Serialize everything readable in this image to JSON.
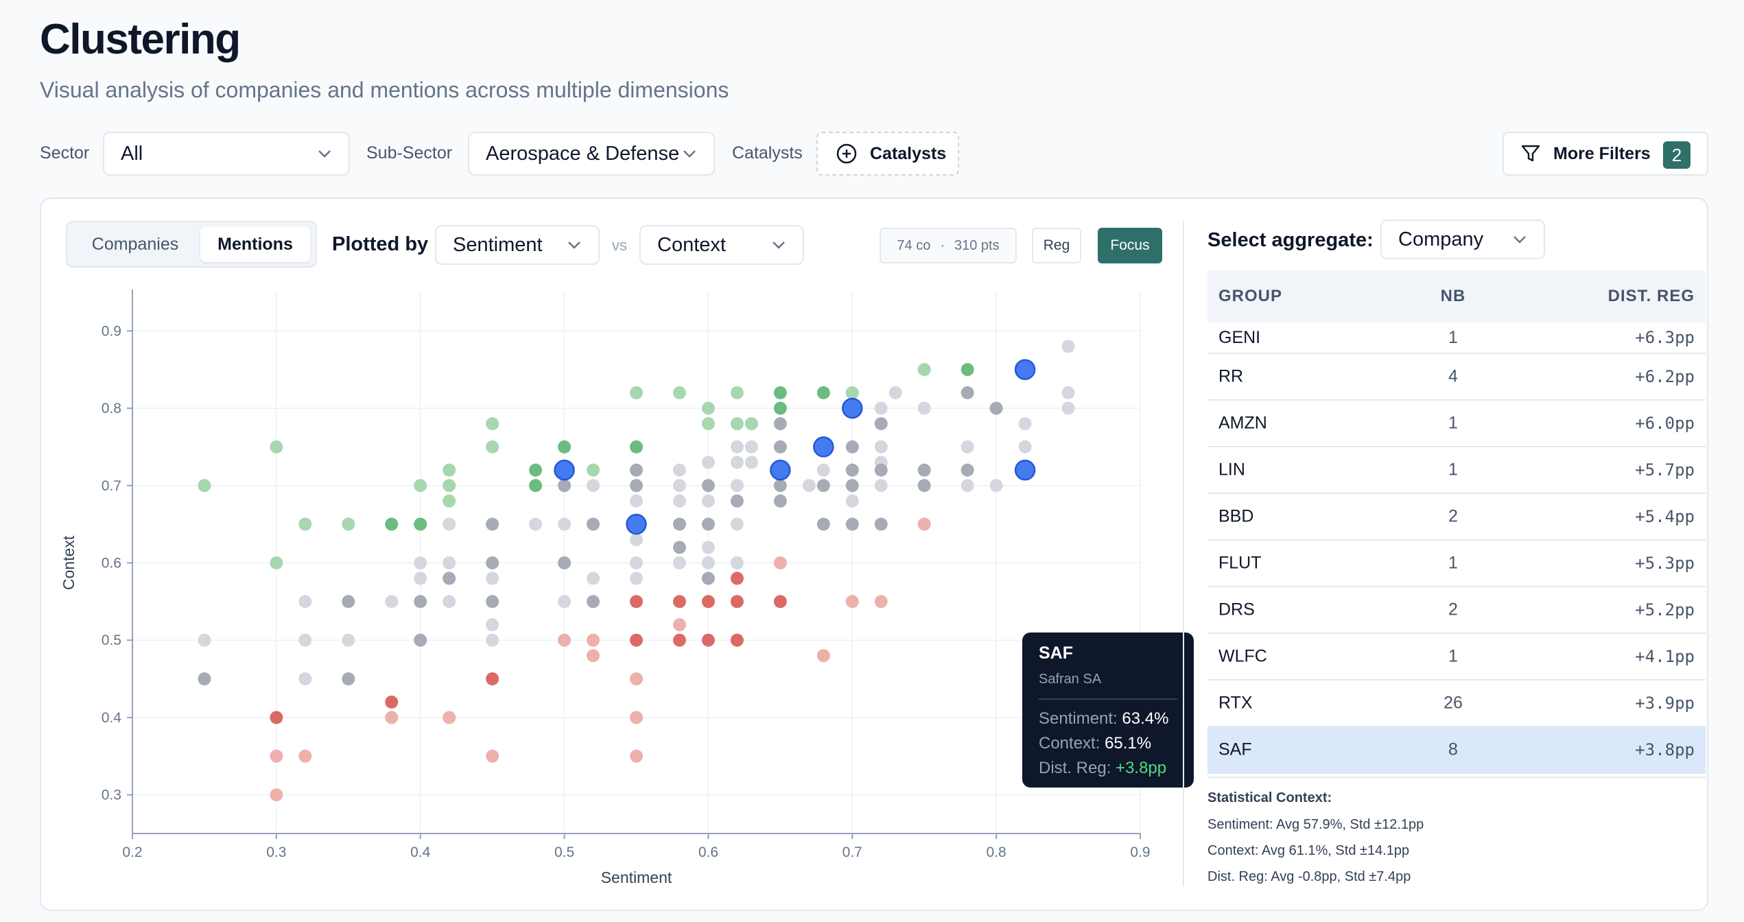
{
  "page": {
    "title": "Clustering",
    "subtitle": "Visual analysis of companies and mentions across multiple dimensions"
  },
  "filters": {
    "sector_label": "Sector",
    "sector_value": "All",
    "subsector_label": "Sub-Sector",
    "subsector_value": "Aerospace & Defense",
    "catalysts_label": "Catalysts",
    "catalysts_button": "Catalysts",
    "more_filters": "More Filters",
    "more_filters_count": "2"
  },
  "toolbar": {
    "tab_companies": "Companies",
    "tab_mentions": "Mentions",
    "active_tab": "Mentions",
    "plotted_by": "Plotted by",
    "x_select": "Sentiment",
    "vs": "vs",
    "y_select": "Context",
    "companies_count": "74 co",
    "points_count": "310 pts",
    "reg_button": "Reg",
    "focus_button": "Focus"
  },
  "tooltip": {
    "code": "SAF",
    "name": "Safran SA",
    "sentiment_label": "Sentiment:",
    "sentiment_value": "63.4%",
    "context_label": "Context:",
    "context_value": "65.1%",
    "dist_label": "Dist. Reg:",
    "dist_value": "+3.8pp"
  },
  "aggregate": {
    "label": "Select aggregate:",
    "value": "Company",
    "columns": [
      "GROUP",
      "NB",
      "DIST. REG"
    ],
    "rows": [
      {
        "group": "GENI",
        "nb": "1",
        "dist": "+6.3pp"
      },
      {
        "group": "RR",
        "nb": "4",
        "dist": "+6.2pp"
      },
      {
        "group": "AMZN",
        "nb": "1",
        "dist": "+6.0pp"
      },
      {
        "group": "LIN",
        "nb": "1",
        "dist": "+5.7pp"
      },
      {
        "group": "BBD",
        "nb": "2",
        "dist": "+5.4pp"
      },
      {
        "group": "FLUT",
        "nb": "1",
        "dist": "+5.3pp"
      },
      {
        "group": "DRS",
        "nb": "2",
        "dist": "+5.2pp"
      },
      {
        "group": "WLFC",
        "nb": "1",
        "dist": "+4.1pp"
      },
      {
        "group": "RTX",
        "nb": "26",
        "dist": "+3.9pp"
      },
      {
        "group": "SAF",
        "nb": "8",
        "dist": "+3.8pp"
      }
    ],
    "selected": "SAF"
  },
  "stats": {
    "title": "Statistical Context:",
    "sentiment": "Sentiment: Avg 57.9%, Std ±12.1pp",
    "context": "Context: Avg 61.1%, Std ±14.1pp",
    "dist": "Dist. Reg: Avg -0.8pp, Std ±7.4pp"
  },
  "colors": {
    "positive": "#a7d7ae",
    "positive_strong": "#6dbb7e",
    "neutral": "#d4d7dd",
    "neutral_strong": "#a6abb5",
    "negative": "#eeb0ab",
    "negative_strong": "#dc6a64",
    "highlight": "#3b74f0",
    "accent": "#2f6f6a"
  },
  "chart_data": {
    "type": "scatter",
    "xlabel": "Sentiment",
    "ylabel": "Context",
    "xlim": [
      0.2,
      0.9
    ],
    "ylim": [
      0.25,
      0.95
    ],
    "x_ticks": [
      "0.2",
      "0.3",
      "0.4",
      "0.5",
      "0.6",
      "0.7",
      "0.8",
      "0.9"
    ],
    "y_ticks": [
      "0.3",
      "0.4",
      "0.5",
      "0.6",
      "0.7",
      "0.8",
      "0.9"
    ],
    "grid": true,
    "categories": [
      "pos",
      "pos-strong",
      "neu",
      "neu-strong",
      "neg",
      "neg-strong",
      "highlight"
    ],
    "points": [
      {
        "x": 0.25,
        "y": 0.7,
        "c": "pos"
      },
      {
        "x": 0.3,
        "y": 0.75,
        "c": "pos"
      },
      {
        "x": 0.3,
        "y": 0.6,
        "c": "pos"
      },
      {
        "x": 0.32,
        "y": 0.65,
        "c": "pos"
      },
      {
        "x": 0.35,
        "y": 0.65,
        "c": "pos"
      },
      {
        "x": 0.38,
        "y": 0.65,
        "c": "pos-strong"
      },
      {
        "x": 0.4,
        "y": 0.65,
        "c": "pos-strong"
      },
      {
        "x": 0.4,
        "y": 0.7,
        "c": "pos"
      },
      {
        "x": 0.42,
        "y": 0.72,
        "c": "pos"
      },
      {
        "x": 0.42,
        "y": 0.7,
        "c": "pos"
      },
      {
        "x": 0.42,
        "y": 0.68,
        "c": "pos"
      },
      {
        "x": 0.45,
        "y": 0.78,
        "c": "pos"
      },
      {
        "x": 0.45,
        "y": 0.75,
        "c": "pos"
      },
      {
        "x": 0.48,
        "y": 0.72,
        "c": "pos-strong"
      },
      {
        "x": 0.48,
        "y": 0.7,
        "c": "pos-strong"
      },
      {
        "x": 0.5,
        "y": 0.75,
        "c": "pos-strong"
      },
      {
        "x": 0.52,
        "y": 0.72,
        "c": "pos"
      },
      {
        "x": 0.55,
        "y": 0.82,
        "c": "pos"
      },
      {
        "x": 0.55,
        "y": 0.75,
        "c": "pos-strong"
      },
      {
        "x": 0.58,
        "y": 0.82,
        "c": "pos"
      },
      {
        "x": 0.6,
        "y": 0.8,
        "c": "pos"
      },
      {
        "x": 0.6,
        "y": 0.78,
        "c": "pos"
      },
      {
        "x": 0.62,
        "y": 0.82,
        "c": "pos"
      },
      {
        "x": 0.62,
        "y": 0.78,
        "c": "pos"
      },
      {
        "x": 0.63,
        "y": 0.78,
        "c": "pos"
      },
      {
        "x": 0.65,
        "y": 0.82,
        "c": "pos-strong"
      },
      {
        "x": 0.65,
        "y": 0.8,
        "c": "pos-strong"
      },
      {
        "x": 0.68,
        "y": 0.82,
        "c": "pos-strong"
      },
      {
        "x": 0.7,
        "y": 0.82,
        "c": "pos"
      },
      {
        "x": 0.75,
        "y": 0.85,
        "c": "pos"
      },
      {
        "x": 0.78,
        "y": 0.85,
        "c": "pos-strong"
      },
      {
        "x": 0.25,
        "y": 0.5,
        "c": "neu"
      },
      {
        "x": 0.25,
        "y": 0.45,
        "c": "neu-strong"
      },
      {
        "x": 0.32,
        "y": 0.55,
        "c": "neu"
      },
      {
        "x": 0.32,
        "y": 0.5,
        "c": "neu"
      },
      {
        "x": 0.32,
        "y": 0.45,
        "c": "neu"
      },
      {
        "x": 0.35,
        "y": 0.55,
        "c": "neu-strong"
      },
      {
        "x": 0.35,
        "y": 0.5,
        "c": "neu"
      },
      {
        "x": 0.35,
        "y": 0.45,
        "c": "neu-strong"
      },
      {
        "x": 0.38,
        "y": 0.55,
        "c": "neu"
      },
      {
        "x": 0.4,
        "y": 0.6,
        "c": "neu"
      },
      {
        "x": 0.4,
        "y": 0.58,
        "c": "neu"
      },
      {
        "x": 0.4,
        "y": 0.55,
        "c": "neu-strong"
      },
      {
        "x": 0.4,
        "y": 0.5,
        "c": "neu-strong"
      },
      {
        "x": 0.42,
        "y": 0.65,
        "c": "neu"
      },
      {
        "x": 0.42,
        "y": 0.6,
        "c": "neu"
      },
      {
        "x": 0.42,
        "y": 0.58,
        "c": "neu-strong"
      },
      {
        "x": 0.42,
        "y": 0.55,
        "c": "neu"
      },
      {
        "x": 0.45,
        "y": 0.65,
        "c": "neu-strong"
      },
      {
        "x": 0.45,
        "y": 0.6,
        "c": "neu-strong"
      },
      {
        "x": 0.45,
        "y": 0.58,
        "c": "neu"
      },
      {
        "x": 0.45,
        "y": 0.55,
        "c": "neu-strong"
      },
      {
        "x": 0.45,
        "y": 0.52,
        "c": "neu"
      },
      {
        "x": 0.45,
        "y": 0.5,
        "c": "neu"
      },
      {
        "x": 0.48,
        "y": 0.65,
        "c": "neu"
      },
      {
        "x": 0.5,
        "y": 0.7,
        "c": "neu-strong"
      },
      {
        "x": 0.5,
        "y": 0.65,
        "c": "neu"
      },
      {
        "x": 0.5,
        "y": 0.6,
        "c": "neu-strong"
      },
      {
        "x": 0.5,
        "y": 0.55,
        "c": "neu"
      },
      {
        "x": 0.52,
        "y": 0.7,
        "c": "neu"
      },
      {
        "x": 0.52,
        "y": 0.65,
        "c": "neu-strong"
      },
      {
        "x": 0.52,
        "y": 0.58,
        "c": "neu"
      },
      {
        "x": 0.52,
        "y": 0.55,
        "c": "neu-strong"
      },
      {
        "x": 0.55,
        "y": 0.72,
        "c": "neu-strong"
      },
      {
        "x": 0.55,
        "y": 0.7,
        "c": "neu-strong"
      },
      {
        "x": 0.55,
        "y": 0.68,
        "c": "neu"
      },
      {
        "x": 0.55,
        "y": 0.63,
        "c": "neu"
      },
      {
        "x": 0.55,
        "y": 0.6,
        "c": "neu"
      },
      {
        "x": 0.55,
        "y": 0.58,
        "c": "neu"
      },
      {
        "x": 0.58,
        "y": 0.72,
        "c": "neu"
      },
      {
        "x": 0.58,
        "y": 0.7,
        "c": "neu"
      },
      {
        "x": 0.58,
        "y": 0.68,
        "c": "neu"
      },
      {
        "x": 0.58,
        "y": 0.65,
        "c": "neu-strong"
      },
      {
        "x": 0.58,
        "y": 0.62,
        "c": "neu-strong"
      },
      {
        "x": 0.58,
        "y": 0.6,
        "c": "neu"
      },
      {
        "x": 0.6,
        "y": 0.73,
        "c": "neu"
      },
      {
        "x": 0.6,
        "y": 0.7,
        "c": "neu-strong"
      },
      {
        "x": 0.6,
        "y": 0.68,
        "c": "neu"
      },
      {
        "x": 0.6,
        "y": 0.65,
        "c": "neu-strong"
      },
      {
        "x": 0.6,
        "y": 0.62,
        "c": "neu"
      },
      {
        "x": 0.6,
        "y": 0.6,
        "c": "neu"
      },
      {
        "x": 0.6,
        "y": 0.58,
        "c": "neu-strong"
      },
      {
        "x": 0.62,
        "y": 0.75,
        "c": "neu"
      },
      {
        "x": 0.62,
        "y": 0.73,
        "c": "neu"
      },
      {
        "x": 0.62,
        "y": 0.7,
        "c": "neu"
      },
      {
        "x": 0.62,
        "y": 0.68,
        "c": "neu-strong"
      },
      {
        "x": 0.62,
        "y": 0.65,
        "c": "neu"
      },
      {
        "x": 0.62,
        "y": 0.6,
        "c": "neu"
      },
      {
        "x": 0.63,
        "y": 0.75,
        "c": "neu"
      },
      {
        "x": 0.63,
        "y": 0.73,
        "c": "neu"
      },
      {
        "x": 0.65,
        "y": 0.78,
        "c": "neu-strong"
      },
      {
        "x": 0.65,
        "y": 0.75,
        "c": "neu-strong"
      },
      {
        "x": 0.65,
        "y": 0.7,
        "c": "neu-strong"
      },
      {
        "x": 0.65,
        "y": 0.68,
        "c": "neu-strong"
      },
      {
        "x": 0.67,
        "y": 0.7,
        "c": "neu"
      },
      {
        "x": 0.68,
        "y": 0.72,
        "c": "neu"
      },
      {
        "x": 0.68,
        "y": 0.7,
        "c": "neu-strong"
      },
      {
        "x": 0.68,
        "y": 0.65,
        "c": "neu-strong"
      },
      {
        "x": 0.7,
        "y": 0.75,
        "c": "neu-strong"
      },
      {
        "x": 0.7,
        "y": 0.72,
        "c": "neu-strong"
      },
      {
        "x": 0.7,
        "y": 0.7,
        "c": "neu-strong"
      },
      {
        "x": 0.7,
        "y": 0.68,
        "c": "neu"
      },
      {
        "x": 0.7,
        "y": 0.65,
        "c": "neu-strong"
      },
      {
        "x": 0.72,
        "y": 0.8,
        "c": "neu"
      },
      {
        "x": 0.72,
        "y": 0.78,
        "c": "neu-strong"
      },
      {
        "x": 0.72,
        "y": 0.75,
        "c": "neu"
      },
      {
        "x": 0.72,
        "y": 0.73,
        "c": "neu"
      },
      {
        "x": 0.72,
        "y": 0.72,
        "c": "neu-strong"
      },
      {
        "x": 0.72,
        "y": 0.7,
        "c": "neu"
      },
      {
        "x": 0.72,
        "y": 0.65,
        "c": "neu-strong"
      },
      {
        "x": 0.73,
        "y": 0.82,
        "c": "neu"
      },
      {
        "x": 0.75,
        "y": 0.8,
        "c": "neu"
      },
      {
        "x": 0.75,
        "y": 0.72,
        "c": "neu-strong"
      },
      {
        "x": 0.75,
        "y": 0.7,
        "c": "neu-strong"
      },
      {
        "x": 0.78,
        "y": 0.82,
        "c": "neu-strong"
      },
      {
        "x": 0.78,
        "y": 0.75,
        "c": "neu"
      },
      {
        "x": 0.78,
        "y": 0.72,
        "c": "neu-strong"
      },
      {
        "x": 0.78,
        "y": 0.7,
        "c": "neu"
      },
      {
        "x": 0.8,
        "y": 0.8,
        "c": "neu-strong"
      },
      {
        "x": 0.8,
        "y": 0.7,
        "c": "neu"
      },
      {
        "x": 0.82,
        "y": 0.78,
        "c": "neu"
      },
      {
        "x": 0.82,
        "y": 0.75,
        "c": "neu"
      },
      {
        "x": 0.85,
        "y": 0.88,
        "c": "neu"
      },
      {
        "x": 0.85,
        "y": 0.82,
        "c": "neu"
      },
      {
        "x": 0.85,
        "y": 0.8,
        "c": "neu"
      },
      {
        "x": 0.3,
        "y": 0.4,
        "c": "neg-strong"
      },
      {
        "x": 0.3,
        "y": 0.35,
        "c": "neg"
      },
      {
        "x": 0.3,
        "y": 0.3,
        "c": "neg"
      },
      {
        "x": 0.32,
        "y": 0.35,
        "c": "neg"
      },
      {
        "x": 0.38,
        "y": 0.42,
        "c": "neg-strong"
      },
      {
        "x": 0.38,
        "y": 0.4,
        "c": "neg"
      },
      {
        "x": 0.42,
        "y": 0.4,
        "c": "neg"
      },
      {
        "x": 0.45,
        "y": 0.45,
        "c": "neg-strong"
      },
      {
        "x": 0.45,
        "y": 0.35,
        "c": "neg"
      },
      {
        "x": 0.5,
        "y": 0.5,
        "c": "neg"
      },
      {
        "x": 0.52,
        "y": 0.5,
        "c": "neg"
      },
      {
        "x": 0.52,
        "y": 0.48,
        "c": "neg"
      },
      {
        "x": 0.55,
        "y": 0.55,
        "c": "neg-strong"
      },
      {
        "x": 0.55,
        "y": 0.5,
        "c": "neg-strong"
      },
      {
        "x": 0.55,
        "y": 0.45,
        "c": "neg"
      },
      {
        "x": 0.55,
        "y": 0.4,
        "c": "neg"
      },
      {
        "x": 0.55,
        "y": 0.35,
        "c": "neg"
      },
      {
        "x": 0.58,
        "y": 0.55,
        "c": "neg-strong"
      },
      {
        "x": 0.58,
        "y": 0.52,
        "c": "neg"
      },
      {
        "x": 0.58,
        "y": 0.5,
        "c": "neg-strong"
      },
      {
        "x": 0.6,
        "y": 0.55,
        "c": "neg-strong"
      },
      {
        "x": 0.6,
        "y": 0.5,
        "c": "neg-strong"
      },
      {
        "x": 0.62,
        "y": 0.58,
        "c": "neg-strong"
      },
      {
        "x": 0.62,
        "y": 0.55,
        "c": "neg-strong"
      },
      {
        "x": 0.62,
        "y": 0.5,
        "c": "neg-strong"
      },
      {
        "x": 0.65,
        "y": 0.6,
        "c": "neg"
      },
      {
        "x": 0.65,
        "y": 0.55,
        "c": "neg-strong"
      },
      {
        "x": 0.68,
        "y": 0.48,
        "c": "neg"
      },
      {
        "x": 0.7,
        "y": 0.55,
        "c": "neg"
      },
      {
        "x": 0.72,
        "y": 0.55,
        "c": "neg"
      },
      {
        "x": 0.75,
        "y": 0.65,
        "c": "neg"
      },
      {
        "x": 0.5,
        "y": 0.72,
        "c": "highlight"
      },
      {
        "x": 0.55,
        "y": 0.65,
        "c": "highlight"
      },
      {
        "x": 0.65,
        "y": 0.72,
        "c": "highlight"
      },
      {
        "x": 0.68,
        "y": 0.75,
        "c": "highlight"
      },
      {
        "x": 0.7,
        "y": 0.8,
        "c": "highlight"
      },
      {
        "x": 0.82,
        "y": 0.85,
        "c": "highlight"
      },
      {
        "x": 0.82,
        "y": 0.72,
        "c": "highlight"
      }
    ]
  }
}
